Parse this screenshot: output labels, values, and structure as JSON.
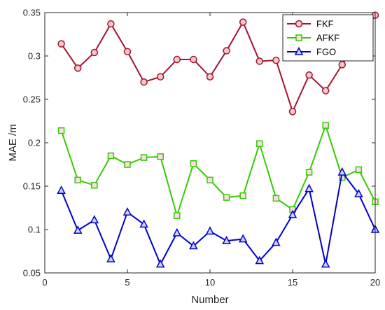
{
  "chart_data": {
    "type": "line",
    "title": "",
    "xlabel": "Number",
    "ylabel": "MAE /m",
    "xlim": [
      0,
      20
    ],
    "ylim": [
      0.05,
      0.35
    ],
    "xticks": [
      0,
      5,
      10,
      15,
      20
    ],
    "xtick_labels": [
      "0",
      "5",
      "10",
      "15",
      "20"
    ],
    "yticks": [
      0.05,
      0.1,
      0.15,
      0.2,
      0.25,
      0.3,
      0.35
    ],
    "ytick_labels": [
      "0.05",
      "0.1",
      "0.15",
      "0.2",
      "0.25",
      "0.3",
      "0.35"
    ],
    "grid": false,
    "legend_position": "top-right",
    "x": [
      1,
      2,
      3,
      4,
      5,
      6,
      7,
      8,
      9,
      10,
      11,
      12,
      13,
      14,
      15,
      16,
      17,
      18,
      19,
      20
    ],
    "series": [
      {
        "name": "FKF",
        "color": "#A2142F",
        "fill": "#f7c8c8",
        "marker": "circle",
        "values": [
          0.314,
          0.286,
          0.304,
          0.337,
          0.305,
          0.27,
          0.276,
          0.296,
          0.296,
          0.276,
          0.306,
          0.339,
          0.294,
          0.295,
          0.236,
          0.278,
          0.26,
          0.29,
          0.317,
          0.347
        ]
      },
      {
        "name": "AFKF",
        "color": "#33cc00",
        "fill": "#ffd9e8",
        "marker": "square",
        "values": [
          0.214,
          0.157,
          0.151,
          0.185,
          0.175,
          0.183,
          0.184,
          0.116,
          0.176,
          0.157,
          0.137,
          0.139,
          0.199,
          0.136,
          0.123,
          0.166,
          0.22,
          0.16,
          0.169,
          0.132
        ]
      },
      {
        "name": "FGO",
        "color": "#0000cc",
        "fill": "#cfd4ff",
        "marker": "triangle",
        "values": [
          0.145,
          0.099,
          0.111,
          0.066,
          0.12,
          0.106,
          0.06,
          0.096,
          0.081,
          0.098,
          0.087,
          0.089,
          0.064,
          0.085,
          0.117,
          0.147,
          0.06,
          0.166,
          0.141,
          0.1
        ]
      }
    ]
  }
}
